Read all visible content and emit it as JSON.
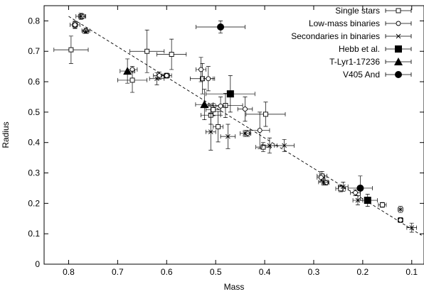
{
  "chart_data": {
    "type": "scatter",
    "xlabel": "Mass",
    "ylabel": "Radius",
    "xlim": [
      0.85,
      0.075
    ],
    "ylim": [
      0,
      0.85
    ],
    "x_ticks": [
      {
        "value": 0.8,
        "label": "0.8"
      },
      {
        "value": 0.7,
        "label": "0.7"
      },
      {
        "value": 0.6,
        "label": "0.6"
      },
      {
        "value": 0.5,
        "label": "0.5"
      },
      {
        "value": 0.4,
        "label": "0.4"
      },
      {
        "value": 0.3,
        "label": "0.3"
      },
      {
        "value": 0.2,
        "label": "0.2"
      },
      {
        "value": 0.1,
        "label": "0.1"
      }
    ],
    "y_ticks": [
      {
        "value": 0,
        "label": "0"
      },
      {
        "value": 0.1,
        "label": "0.1"
      },
      {
        "value": 0.2,
        "label": "0.2"
      },
      {
        "value": 0.3,
        "label": "0.3"
      },
      {
        "value": 0.4,
        "label": "0.4"
      },
      {
        "value": 0.5,
        "label": "0.5"
      },
      {
        "value": 0.6,
        "label": "0.6"
      },
      {
        "value": 0.7,
        "label": "0.7"
      },
      {
        "value": 0.8,
        "label": "0.8"
      }
    ],
    "grid": false,
    "legend_position": "top-right",
    "reference_line": {
      "style": "dashed",
      "x": [
        0.8,
        0.08
      ],
      "y": [
        0.815,
        0.095
      ]
    },
    "series": [
      {
        "name": "Single stars",
        "marker": "open-square",
        "points": [
          {
            "x": 0.795,
            "y": 0.705,
            "xerr": 0.035,
            "yerr": 0.045
          },
          {
            "x": 0.787,
            "y": 0.787,
            "xerr": 0.005,
            "yerr": 0.012
          },
          {
            "x": 0.773,
            "y": 0.815,
            "xerr": 0.007,
            "yerr": 0.008
          },
          {
            "x": 0.67,
            "y": 0.605,
            "xerr": 0.03,
            "yerr": 0.04
          },
          {
            "x": 0.64,
            "y": 0.7,
            "xerr": 0.035,
            "yerr": 0.07
          },
          {
            "x": 0.59,
            "y": 0.69,
            "xerr": 0.03,
            "yerr": 0.05
          },
          {
            "x": 0.6,
            "y": 0.62,
            "xerr": 0.006,
            "yerr": 0.008
          },
          {
            "x": 0.527,
            "y": 0.61,
            "xerr": 0.025,
            "yerr": 0.05
          },
          {
            "x": 0.505,
            "y": 0.508,
            "xerr": 0.015,
            "yerr": 0.02
          },
          {
            "x": 0.48,
            "y": 0.522,
            "xerr": 0.035,
            "yerr": 0.04
          },
          {
            "x": 0.495,
            "y": 0.452,
            "xerr": 0.01,
            "yerr": 0.05
          },
          {
            "x": 0.51,
            "y": 0.49,
            "xerr": 0.02,
            "yerr": 0.03
          },
          {
            "x": 0.398,
            "y": 0.493,
            "xerr": 0.04,
            "yerr": 0.04
          },
          {
            "x": 0.403,
            "y": 0.385,
            "xerr": 0.015,
            "yerr": 0.015
          },
          {
            "x": 0.283,
            "y": 0.29,
            "xerr": 0.01,
            "yerr": 0.015
          },
          {
            "x": 0.245,
            "y": 0.248,
            "xerr": 0.01,
            "yerr": 0.01
          },
          {
            "x": 0.16,
            "y": 0.195,
            "xerr": 0.008,
            "yerr": 0.008
          },
          {
            "x": 0.123,
            "y": 0.145,
            "xerr": 0.005,
            "yerr": 0.008
          }
        ]
      },
      {
        "name": "Low-mass binaries",
        "marker": "open-circle",
        "points": [
          {
            "x": 0.787,
            "y": 0.787,
            "xerr": 0.01,
            "yerr": 0.01
          },
          {
            "x": 0.765,
            "y": 0.768,
            "xerr": 0.008,
            "yerr": 0.008
          },
          {
            "x": 0.67,
            "y": 0.64,
            "xerr": 0.01,
            "yerr": 0.01
          },
          {
            "x": 0.615,
            "y": 0.62,
            "xerr": 0.012,
            "yerr": 0.012
          },
          {
            "x": 0.6,
            "y": 0.62,
            "xerr": 0.01,
            "yerr": 0.008
          },
          {
            "x": 0.53,
            "y": 0.64,
            "xerr": 0.01,
            "yerr": 0.04
          },
          {
            "x": 0.515,
            "y": 0.61,
            "xerr": 0.01,
            "yerr": 0.04
          },
          {
            "x": 0.49,
            "y": 0.52,
            "xerr": 0.01,
            "yerr": 0.03
          },
          {
            "x": 0.44,
            "y": 0.51,
            "xerr": 0.015,
            "yerr": 0.04
          },
          {
            "x": 0.435,
            "y": 0.43,
            "xerr": 0.007,
            "yerr": 0.01
          },
          {
            "x": 0.41,
            "y": 0.44,
            "xerr": 0.02,
            "yerr": 0.06
          },
          {
            "x": 0.285,
            "y": 0.285,
            "xerr": 0.008,
            "yerr": 0.012
          },
          {
            "x": 0.275,
            "y": 0.268,
            "xerr": 0.006,
            "yerr": 0.008
          },
          {
            "x": 0.215,
            "y": 0.235,
            "xerr": 0.01,
            "yerr": 0.01
          },
          {
            "x": 0.123,
            "y": 0.145,
            "xerr": 0.004,
            "yerr": 0.006
          }
        ]
      },
      {
        "name": "Secondaries in binaries",
        "marker": "cross",
        "points": [
          {
            "x": 0.775,
            "y": 0.815,
            "xerr": 0.01,
            "yerr": 0.01
          },
          {
            "x": 0.765,
            "y": 0.765,
            "xerr": 0.006,
            "yerr": 0.006
          },
          {
            "x": 0.62,
            "y": 0.61,
            "xerr": 0.015,
            "yerr": 0.02
          },
          {
            "x": 0.51,
            "y": 0.435,
            "xerr": 0.01,
            "yerr": 0.06
          },
          {
            "x": 0.475,
            "y": 0.42,
            "xerr": 0.015,
            "yerr": 0.04
          },
          {
            "x": 0.44,
            "y": 0.43,
            "xerr": 0.01,
            "yerr": 0.01
          },
          {
            "x": 0.39,
            "y": 0.39,
            "xerr": 0.015,
            "yerr": 0.025
          },
          {
            "x": 0.36,
            "y": 0.39,
            "xerr": 0.02,
            "yerr": 0.02
          },
          {
            "x": 0.28,
            "y": 0.27,
            "xerr": 0.01,
            "yerr": 0.01
          },
          {
            "x": 0.24,
            "y": 0.255,
            "xerr": 0.01,
            "yerr": 0.015
          },
          {
            "x": 0.21,
            "y": 0.21,
            "xerr": 0.01,
            "yerr": 0.015
          },
          {
            "x": 0.123,
            "y": 0.18,
            "xerr": 0.005,
            "yerr": 0.01
          },
          {
            "x": 0.1,
            "y": 0.12,
            "xerr": 0.01,
            "yerr": 0.015
          }
        ]
      },
      {
        "name": "Hebb et al.",
        "marker": "filled-square",
        "points": [
          {
            "x": 0.47,
            "y": 0.56,
            "xerr": 0.05,
            "yerr": 0.06
          },
          {
            "x": 0.19,
            "y": 0.21,
            "xerr": 0.02,
            "yerr": 0.02
          }
        ]
      },
      {
        "name": "T-Lyr1-17236",
        "marker": "filled-triangle",
        "points": [
          {
            "x": 0.68,
            "y": 0.635,
            "xerr": 0.015,
            "yerr": 0.04
          },
          {
            "x": 0.523,
            "y": 0.525,
            "xerr": 0.018,
            "yerr": 0.05
          }
        ]
      },
      {
        "name": "V405 And",
        "marker": "filled-circle",
        "points": [
          {
            "x": 0.49,
            "y": 0.78,
            "xerr": 0.05,
            "yerr": 0.02
          },
          {
            "x": 0.205,
            "y": 0.25,
            "xerr": 0.025,
            "yerr": 0.04
          }
        ]
      }
    ]
  }
}
